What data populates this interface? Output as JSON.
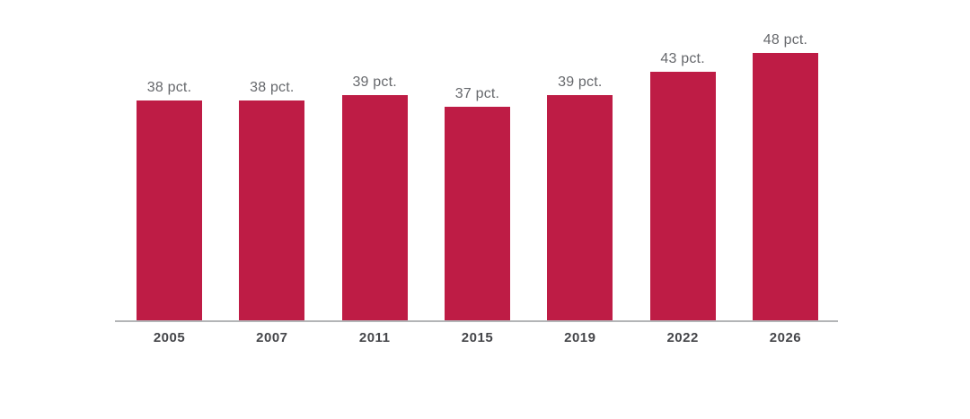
{
  "chart_data": {
    "type": "bar",
    "title": "",
    "xlabel": "",
    "ylabel": "",
    "unit": "pct.",
    "categories": [
      "2005",
      "2007",
      "2011",
      "2015",
      "2019",
      "2022",
      "2026"
    ],
    "values": [
      38,
      38,
      39,
      37,
      39,
      43,
      48
    ],
    "bar_labels": [
      "38 pct.",
      "38 pct.",
      "39 pct.",
      "37 pct.",
      "39 pct.",
      "43 pct.",
      "48 pct."
    ],
    "ylim": [
      0,
      50
    ],
    "grid": false,
    "legend": false,
    "colors": {
      "bar": "#BE1C45",
      "axis_line": "#B3B5B7",
      "value_label": "#66686C",
      "category_label": "#45464A"
    }
  }
}
